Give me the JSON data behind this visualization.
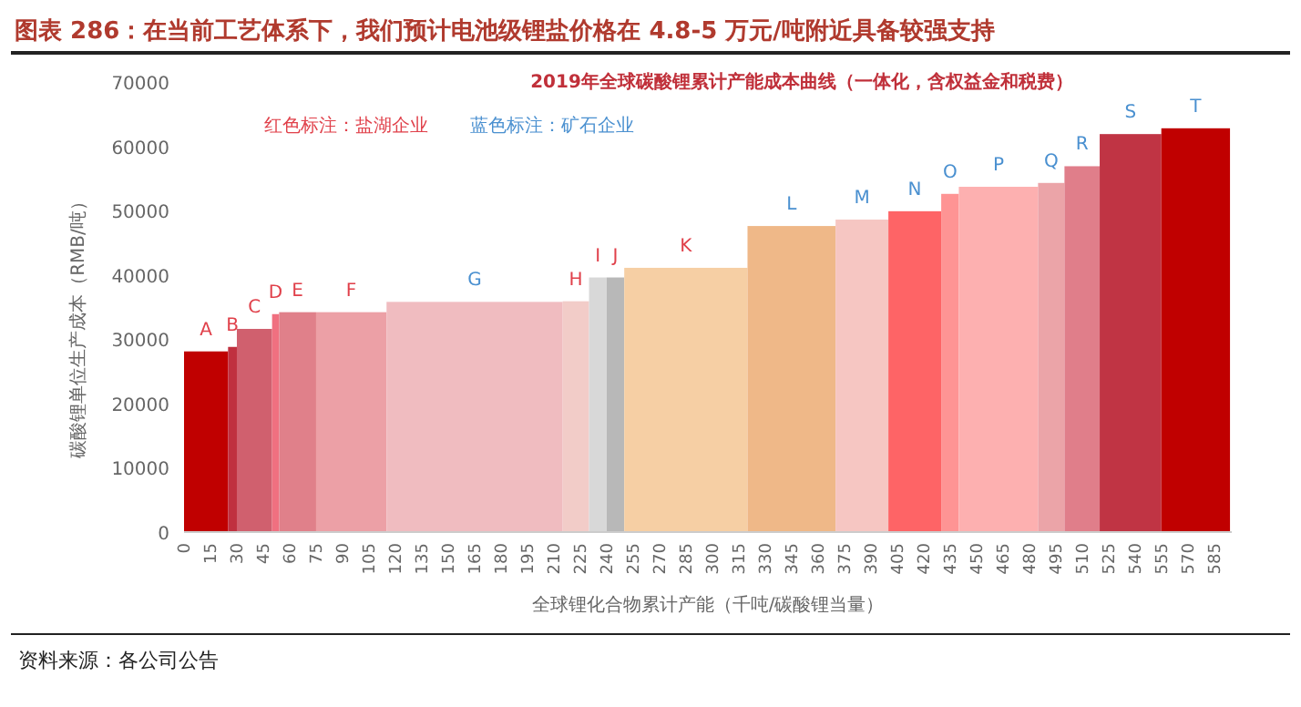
{
  "chart_data": {
    "type": "histogram",
    "title": "图表 286：在当前工艺体系下，我们预计电池级锂盐价格在 4.8-5 万元/吨附近具备较强支持",
    "subtitle": "2019年全球碳酸锂累计产能成本曲线（一体化，含权益金和税费）",
    "xlabel": "全球锂化合物累计产能（千吨/碳酸锂当量）",
    "ylabel": "碳酸锂单位生产成本（RMB/吨）",
    "annotations": [
      "红色标注：盐湖企业",
      "蓝色标注：矿石企业",
      "资料来源：各公司公告"
    ],
    "categories": [
      "A",
      "B",
      "C",
      "D",
      "E",
      "F",
      "G",
      "H",
      "I",
      "J",
      "K",
      "L",
      "M",
      "N",
      "O",
      "P",
      "Q",
      "R",
      "S",
      "T"
    ],
    "bins": [
      0,
      25,
      30,
      50,
      54,
      75,
      115,
      215,
      230,
      240,
      250,
      320,
      370,
      400,
      430,
      440,
      485,
      500,
      520,
      555,
      594
    ],
    "series": [
      {
        "color": "#e0404a",
        "values": [
          28100,
          28800,
          31600,
          33900,
          34200,
          34200,
          null,
          35900,
          39600,
          39600,
          41100,
          null,
          null,
          null,
          null,
          null,
          null,
          null,
          null,
          null
        ],
        "colors": [
          "#c00000",
          "#c0303f",
          "#d0606e",
          "#f07080",
          "#e0808a",
          "#eca0a6",
          null,
          "#f2ccc8",
          "#d8d8d8",
          "#b8b8b8",
          "#f6cfa4",
          null,
          null,
          null,
          null,
          null,
          null,
          null,
          null,
          null
        ]
      },
      {
        "color": "#4a90d0",
        "values": [
          null,
          null,
          null,
          null,
          null,
          null,
          35800,
          null,
          null,
          null,
          null,
          47600,
          48600,
          49900,
          52600,
          53700,
          54300,
          56900,
          61900,
          62800
        ],
        "colors": [
          null,
          null,
          null,
          null,
          null,
          null,
          "#f0bcc0",
          null,
          null,
          null,
          null,
          "#efb888",
          "#f6c6c2",
          "#fe6466",
          "#fe9494",
          "#fdb0b0",
          "#eba4a8",
          "#e07e8a",
          "#c03444",
          "#c00000"
        ]
      }
    ],
    "xlim": [
      0,
      595
    ],
    "ylim": [
      0,
      70000
    ],
    "xticks": [
      0,
      15,
      30,
      45,
      60,
      75,
      90,
      105,
      120,
      135,
      150,
      165,
      180,
      195,
      210,
      225,
      240,
      255,
      270,
      285,
      300,
      315,
      330,
      345,
      360,
      375,
      390,
      405,
      420,
      435,
      450,
      465,
      480,
      495,
      510,
      525,
      540,
      555,
      570,
      585
    ],
    "yticks": [
      0,
      10000,
      20000,
      30000,
      40000,
      50000,
      60000,
      70000
    ]
  }
}
